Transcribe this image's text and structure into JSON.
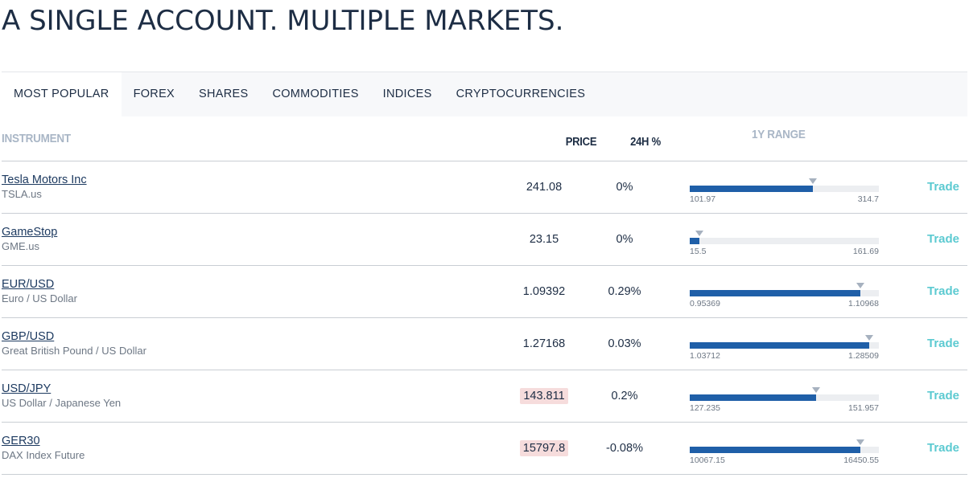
{
  "headline": "A SINGLE ACCOUNT. MULTIPLE MARKETS.",
  "tabs": [
    {
      "label": "MOST POPULAR",
      "active": true
    },
    {
      "label": "FOREX",
      "active": false
    },
    {
      "label": "SHARES",
      "active": false
    },
    {
      "label": "COMMODITIES",
      "active": false
    },
    {
      "label": "INDICES",
      "active": false
    },
    {
      "label": "CRYPTOCURRENCIES",
      "active": false
    }
  ],
  "columns": {
    "instrument": "INSTRUMENT",
    "price": "PRICE",
    "change": "24H %",
    "range": "1Y RANGE"
  },
  "colors": {
    "range_fill": "#1f5fa8",
    "trade_link": "#5ccad1",
    "price_flash": "#f6dcdc"
  },
  "rows": [
    {
      "name": "Tesla Motors Inc",
      "symbol": "TSLA.us",
      "price": "241.08",
      "price_flash": false,
      "change": "0%",
      "range_low": "101.97",
      "range_high": "314.7",
      "range_fraction": 0.65,
      "trade": "Trade"
    },
    {
      "name": "GameStop",
      "symbol": "GME.us",
      "price": "23.15",
      "price_flash": false,
      "change": "0%",
      "range_low": "15.5",
      "range_high": "161.69",
      "range_fraction": 0.05,
      "trade": "Trade"
    },
    {
      "name": "EUR/USD",
      "symbol": "Euro / US Dollar",
      "price": "1.09392",
      "price_flash": false,
      "change": "0.29%",
      "range_low": "0.95369",
      "range_high": "1.10968",
      "range_fraction": 0.9,
      "trade": "Trade"
    },
    {
      "name": "GBP/USD",
      "symbol": "Great British Pound / US Dollar",
      "price": "1.27168",
      "price_flash": false,
      "change": "0.03%",
      "range_low": "1.03712",
      "range_high": "1.28509",
      "range_fraction": 0.95,
      "trade": "Trade"
    },
    {
      "name": "USD/JPY",
      "symbol": "US Dollar / Japanese Yen",
      "price": "143.811",
      "price_flash": true,
      "change": "0.2%",
      "range_low": "127.235",
      "range_high": "151.957",
      "range_fraction": 0.67,
      "trade": "Trade"
    },
    {
      "name": "GER30",
      "symbol": "DAX Index Future",
      "price": "15797.8",
      "price_flash": true,
      "change": "-0.08%",
      "range_low": "10067.15",
      "range_high": "16450.55",
      "range_fraction": 0.9,
      "trade": "Trade"
    }
  ]
}
